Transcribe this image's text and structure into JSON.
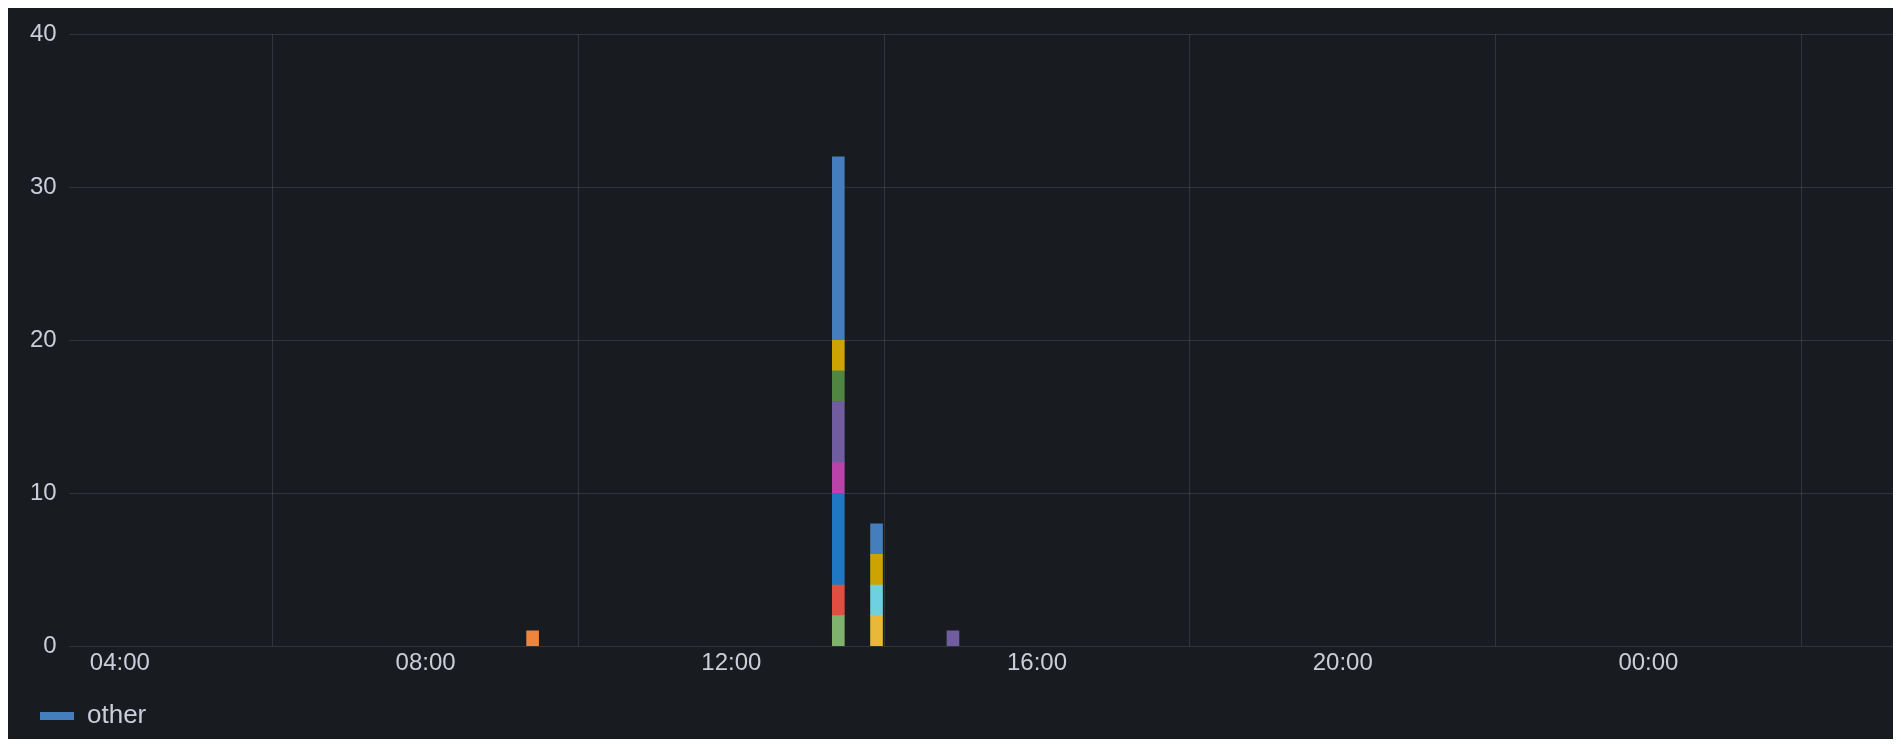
{
  "chart_data": {
    "type": "bar",
    "stacked": true,
    "x": [
      9.4,
      13.4,
      13.9,
      14.9
    ],
    "series": [
      {
        "color": "#7eb26d",
        "values": [
          null,
          2,
          null,
          null
        ]
      },
      {
        "color": "#eab839",
        "values": [
          null,
          null,
          2,
          null
        ]
      },
      {
        "color": "#6ed0e0",
        "values": [
          null,
          null,
          2,
          null
        ]
      },
      {
        "color": "#ef843c",
        "values": [
          1,
          null,
          null,
          null
        ]
      },
      {
        "color": "#e24d42",
        "values": [
          null,
          2,
          null,
          null
        ]
      },
      {
        "color": "#1f78c1",
        "values": [
          null,
          6,
          null,
          null
        ]
      },
      {
        "color": "#ba43a9",
        "values": [
          null,
          2,
          null,
          null
        ]
      },
      {
        "color": "#705da0",
        "values": [
          null,
          4,
          null,
          1
        ]
      },
      {
        "color": "#508642",
        "values": [
          null,
          2,
          null,
          null
        ]
      },
      {
        "color": "#cca300",
        "values": [
          null,
          2,
          2,
          null
        ]
      },
      {
        "name": "other",
        "color": "#447ebc",
        "values": [
          null,
          12,
          2,
          null
        ]
      }
    ],
    "xlim": [
      3.33,
      27.2
    ],
    "xticks": [
      {
        "value": 4,
        "label": "04:00"
      },
      {
        "value": 8,
        "label": "08:00"
      },
      {
        "value": 12,
        "label": "12:00"
      },
      {
        "value": 16,
        "label": "16:00"
      },
      {
        "value": 20,
        "label": "20:00"
      },
      {
        "value": 24,
        "label": "00:00"
      }
    ],
    "ylim": [
      0,
      40
    ],
    "yticks": [
      0,
      10,
      20,
      30,
      40
    ],
    "grid": true,
    "legend": "bottom"
  }
}
